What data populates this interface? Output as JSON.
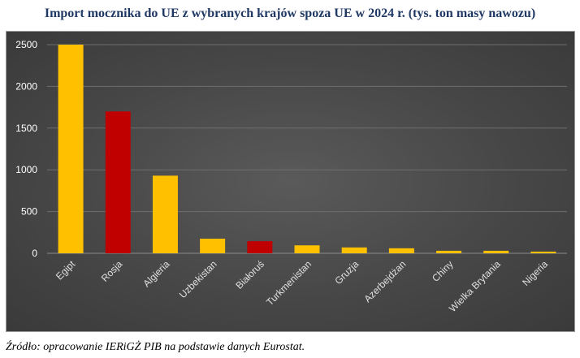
{
  "title": "Import mocznika do UE z wybranych krajów spoza UE w 2024 r. (tys. ton masy nawozu)",
  "source": "Źródło: opracowanie IERiGŻ PIB na podstawie danych Eurostat.",
  "colors": {
    "gold": "#ffc000",
    "red": "#c00000",
    "grid": "#6e6e6e",
    "background": "#474747"
  },
  "chart_data": {
    "type": "bar",
    "categories": [
      "Egipt",
      "Rosja",
      "Algieria",
      "Uzbekistan",
      "Białoruś",
      "Turkmenistan",
      "Gruzja",
      "Azerbejdżan",
      "Chiny",
      "Wielka Brytania",
      "Nigeria"
    ],
    "values": [
      2500,
      1700,
      930,
      175,
      145,
      95,
      70,
      60,
      30,
      30,
      20
    ],
    "bar_colors": [
      "#ffc000",
      "#c00000",
      "#ffc000",
      "#ffc000",
      "#c00000",
      "#ffc000",
      "#ffc000",
      "#ffc000",
      "#ffc000",
      "#ffc000",
      "#ffc000"
    ],
    "yticks": [
      0,
      500,
      1000,
      1500,
      2000,
      2500
    ],
    "ylim": [
      0,
      2500
    ],
    "grid": true,
    "legend": "none"
  }
}
